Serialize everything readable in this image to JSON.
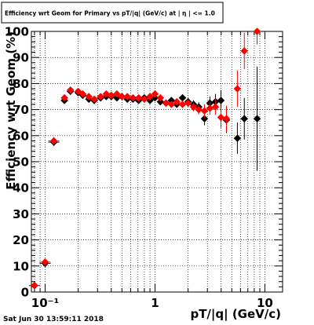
{
  "chart_data": {
    "type": "scatter",
    "title": "Efficiency wrt Geom for Primary vs pT/|q| (GeV/c) at | η | <= 1.0",
    "xlabel": "pT/|q| (GeV/c)",
    "ylabel": "Efficiency wrt Geom (%)",
    "x_scale": "log",
    "xlim": [
      0.075,
      14.5
    ],
    "ylim": [
      0,
      100
    ],
    "x_ticks": [
      {
        "value": 0.1,
        "label": "10⁻¹"
      },
      {
        "value": 1,
        "label": "1"
      },
      {
        "value": 10,
        "label": "10"
      }
    ],
    "y_ticks": [
      0,
      10,
      20,
      30,
      40,
      50,
      60,
      70,
      80,
      90,
      100
    ],
    "grid": true,
    "timestamp": "Sat Jun 30 13:59:11 2018",
    "series": [
      {
        "color": "#000000",
        "marker": "diamond",
        "points": [
          {
            "x": 0.08,
            "y": 2.5,
            "ey": 1.0
          },
          {
            "x": 0.1,
            "y": 11.0,
            "ey": 1.0
          },
          {
            "x": 0.12,
            "y": 57.5,
            "ey": 1.5
          },
          {
            "x": 0.15,
            "y": 73.5,
            "ey": 1.2
          },
          {
            "x": 0.17,
            "y": 77.0,
            "ey": 1.0
          },
          {
            "x": 0.2,
            "y": 76.5,
            "ey": 1.0
          },
          {
            "x": 0.22,
            "y": 75.5,
            "ey": 1.0
          },
          {
            "x": 0.25,
            "y": 74.0,
            "ey": 1.0
          },
          {
            "x": 0.28,
            "y": 73.5,
            "ey": 1.0
          },
          {
            "x": 0.32,
            "y": 74.5,
            "ey": 1.0
          },
          {
            "x": 0.36,
            "y": 75.0,
            "ey": 1.0
          },
          {
            "x": 0.4,
            "y": 75.0,
            "ey": 1.0
          },
          {
            "x": 0.45,
            "y": 74.5,
            "ey": 1.0
          },
          {
            "x": 0.5,
            "y": 75.0,
            "ey": 1.0
          },
          {
            "x": 0.56,
            "y": 74.0,
            "ey": 1.0
          },
          {
            "x": 0.63,
            "y": 74.0,
            "ey": 1.0
          },
          {
            "x": 0.71,
            "y": 73.5,
            "ey": 1.0
          },
          {
            "x": 0.8,
            "y": 74.5,
            "ey": 1.0
          },
          {
            "x": 0.9,
            "y": 73.5,
            "ey": 1.0
          },
          {
            "x": 1.0,
            "y": 74.5,
            "ey": 1.0
          },
          {
            "x": 1.12,
            "y": 73.0,
            "ey": 1.2
          },
          {
            "x": 1.26,
            "y": 72.5,
            "ey": 1.2
          },
          {
            "x": 1.41,
            "y": 73.5,
            "ey": 1.2
          },
          {
            "x": 1.58,
            "y": 72.0,
            "ey": 1.3
          },
          {
            "x": 1.78,
            "y": 74.5,
            "ey": 1.4
          },
          {
            "x": 2.0,
            "y": 73.0,
            "ey": 1.5
          },
          {
            "x": 2.24,
            "y": 72.0,
            "ey": 1.6
          },
          {
            "x": 2.5,
            "y": 71.0,
            "ey": 1.8
          },
          {
            "x": 2.82,
            "y": 66.5,
            "ey": 2.5
          },
          {
            "x": 3.16,
            "y": 72.5,
            "ey": 2.5
          },
          {
            "x": 3.55,
            "y": 73.0,
            "ey": 3.0
          },
          {
            "x": 3.98,
            "y": 73.5,
            "ey": 4.0
          },
          {
            "x": 4.47,
            "y": 66.0,
            "ey": 5.0
          },
          {
            "x": 5.62,
            "y": 59.0,
            "ey": 6.0
          },
          {
            "x": 6.5,
            "y": 66.5,
            "ey": 8.0
          },
          {
            "x": 8.5,
            "y": 66.5,
            "ey": 20.0
          }
        ]
      },
      {
        "color": "#ff0000",
        "marker": "diamond",
        "points": [
          {
            "x": 0.08,
            "y": 2.5,
            "ey": 1.0
          },
          {
            "x": 0.1,
            "y": 11.5,
            "ey": 1.0
          },
          {
            "x": 0.12,
            "y": 58.0,
            "ey": 1.5
          },
          {
            "x": 0.15,
            "y": 74.5,
            "ey": 1.2
          },
          {
            "x": 0.17,
            "y": 77.5,
            "ey": 1.0
          },
          {
            "x": 0.2,
            "y": 77.0,
            "ey": 1.0
          },
          {
            "x": 0.22,
            "y": 76.0,
            "ey": 1.0
          },
          {
            "x": 0.25,
            "y": 75.0,
            "ey": 1.0
          },
          {
            "x": 0.28,
            "y": 74.0,
            "ey": 1.0
          },
          {
            "x": 0.32,
            "y": 75.0,
            "ey": 1.0
          },
          {
            "x": 0.36,
            "y": 76.0,
            "ey": 1.0
          },
          {
            "x": 0.4,
            "y": 75.5,
            "ey": 1.0
          },
          {
            "x": 0.45,
            "y": 76.0,
            "ey": 1.0
          },
          {
            "x": 0.5,
            "y": 75.0,
            "ey": 1.0
          },
          {
            "x": 0.56,
            "y": 75.0,
            "ey": 1.0
          },
          {
            "x": 0.63,
            "y": 74.5,
            "ey": 1.0
          },
          {
            "x": 0.71,
            "y": 74.5,
            "ey": 1.0
          },
          {
            "x": 0.8,
            "y": 74.0,
            "ey": 1.0
          },
          {
            "x": 0.9,
            "y": 75.0,
            "ey": 1.0
          },
          {
            "x": 1.0,
            "y": 76.0,
            "ey": 1.0
          },
          {
            "x": 1.12,
            "y": 74.5,
            "ey": 1.2
          },
          {
            "x": 1.26,
            "y": 72.5,
            "ey": 1.2
          },
          {
            "x": 1.41,
            "y": 72.0,
            "ey": 1.2
          },
          {
            "x": 1.58,
            "y": 73.0,
            "ey": 1.3
          },
          {
            "x": 1.78,
            "y": 72.0,
            "ey": 1.4
          },
          {
            "x": 2.0,
            "y": 72.5,
            "ey": 1.5
          },
          {
            "x": 2.24,
            "y": 71.0,
            "ey": 1.6
          },
          {
            "x": 2.5,
            "y": 70.0,
            "ey": 1.8
          },
          {
            "x": 2.82,
            "y": 69.5,
            "ey": 2.5
          },
          {
            "x": 3.16,
            "y": 70.5,
            "ey": 2.5
          },
          {
            "x": 3.55,
            "y": 71.0,
            "ey": 3.0
          },
          {
            "x": 3.98,
            "y": 67.0,
            "ey": 4.0
          },
          {
            "x": 4.47,
            "y": 66.5,
            "ey": 5.0
          },
          {
            "x": 5.62,
            "y": 78.0,
            "ey": 7.0
          },
          {
            "x": 6.5,
            "y": 92.5,
            "ey": 7.0
          },
          {
            "x": 8.5,
            "y": 100.0,
            "ey": 5.0
          }
        ]
      }
    ]
  }
}
